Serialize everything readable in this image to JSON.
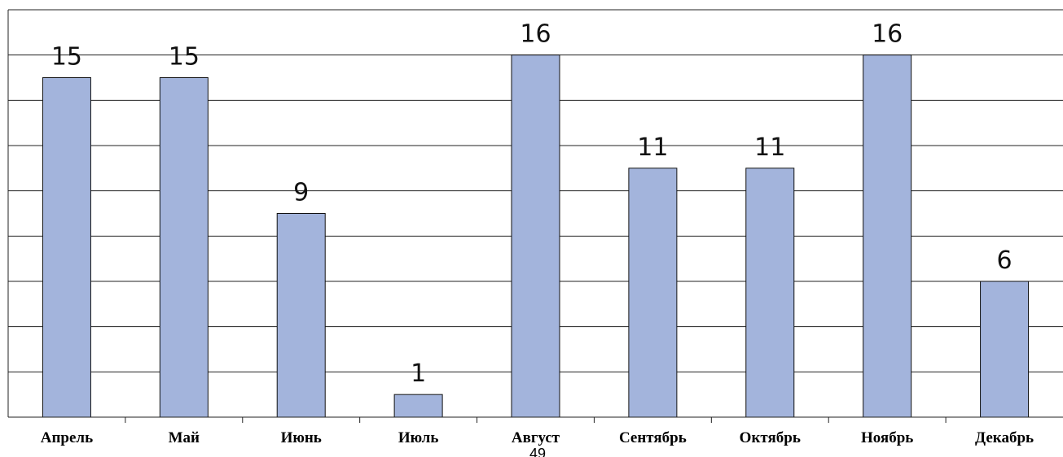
{
  "chart_data": {
    "type": "bar",
    "categories": [
      "Апрель",
      "Май",
      "Июнь",
      "Июль",
      "Август",
      "Сентябрь",
      "Октябрь",
      "Ноябрь",
      "Декабрь"
    ],
    "values": [
      15,
      15,
      9,
      1,
      16,
      11,
      11,
      16,
      6
    ],
    "title": "",
    "xlabel": "",
    "ylabel": "",
    "ylim": [
      0,
      16
    ],
    "grid": true,
    "legend": "none",
    "bar_color": "#a3b4dc",
    "bar_stroke": "#111111"
  },
  "page_number": "49"
}
